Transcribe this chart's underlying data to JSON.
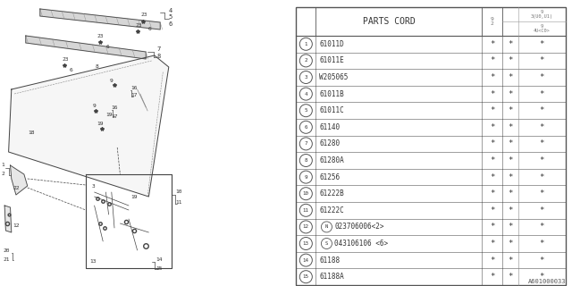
{
  "footer": "A601000033",
  "rows": [
    [
      "1",
      "61011D",
      "*",
      "*"
    ],
    [
      "2",
      "61011E",
      "*",
      "*"
    ],
    [
      "3",
      "W205065",
      "*",
      "*"
    ],
    [
      "4",
      "61011B",
      "*",
      "*"
    ],
    [
      "5",
      "61011C",
      "*",
      "*"
    ],
    [
      "6",
      "61140",
      "*",
      "*"
    ],
    [
      "7",
      "61280",
      "*",
      "*"
    ],
    [
      "8",
      "61280A",
      "*",
      "*"
    ],
    [
      "9",
      "61256",
      "*",
      "*"
    ],
    [
      "10",
      "61222B",
      "*",
      "*"
    ],
    [
      "11",
      "61222C",
      "*",
      "*"
    ],
    [
      "12",
      "N023706006<2>",
      "*",
      "*"
    ],
    [
      "13",
      "S043106106 <6>",
      "*",
      "*"
    ],
    [
      "14",
      "61188",
      "*",
      "*"
    ],
    [
      "15",
      "61188A",
      "*",
      "*"
    ]
  ],
  "col_header_92": "9\n2",
  "col_header_93": "9\n3(U0,U1)",
  "col_header_94": "9\n4U<C0>"
}
